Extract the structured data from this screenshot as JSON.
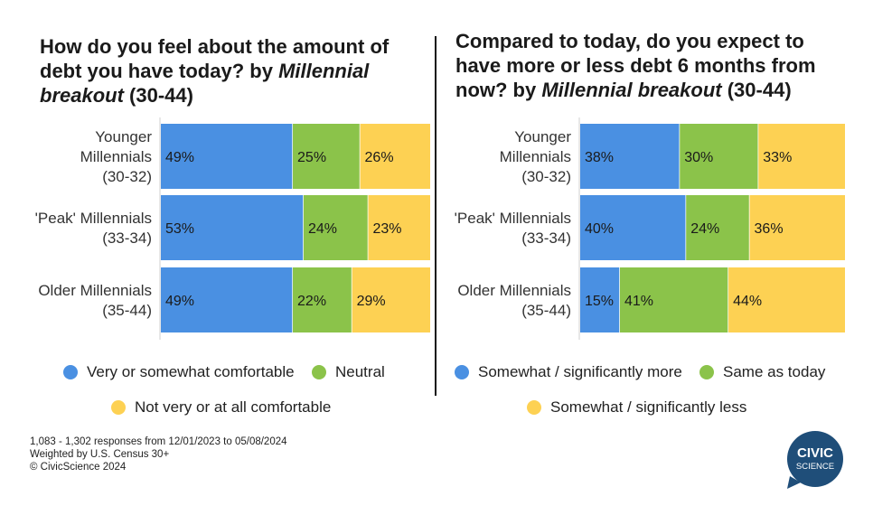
{
  "left_title": {
    "part1": "How do you feel about the amount of debt you have today?",
    "part2": " by ",
    "part3": "Millennial breakout",
    "part4": " (30-44)"
  },
  "right_title": {
    "part1": "Compared to today, do you expect to have more or less debt 6 months from now?",
    "part2": " by ",
    "part3": "Millennial breakout",
    "part4": " (30-44)"
  },
  "chart_data": [
    {
      "type": "bar",
      "stacked": true,
      "orientation": "horizontal",
      "categories": [
        [
          "Younger",
          "Millennials",
          "(30-32)"
        ],
        [
          "'Peak' Millennials",
          "(33-34)"
        ],
        [
          "Older Millennials",
          "(35-44)"
        ]
      ],
      "series": [
        {
          "name": "Very or somewhat comfortable",
          "color": "#4a90e2",
          "values": [
            49,
            53,
            49
          ]
        },
        {
          "name": "Neutral",
          "color": "#8bc34a",
          "values": [
            25,
            24,
            22
          ]
        },
        {
          "name": "Not very or at all comfortable",
          "color": "#fdd153",
          "values": [
            26,
            23,
            29
          ]
        }
      ],
      "value_suffix": "%"
    },
    {
      "type": "bar",
      "stacked": true,
      "orientation": "horizontal",
      "categories": [
        [
          "Younger",
          "Millennials",
          "(30-32)"
        ],
        [
          "'Peak' Millennials",
          "(33-34)"
        ],
        [
          "Older Millennials",
          "(35-44)"
        ]
      ],
      "series": [
        {
          "name": "Somewhat / significantly more",
          "color": "#4a90e2",
          "values": [
            38,
            40,
            15
          ]
        },
        {
          "name": "Same as today",
          "color": "#8bc34a",
          "values": [
            30,
            24,
            41
          ]
        },
        {
          "name": "Somewhat / significantly less",
          "color": "#fdd153",
          "values": [
            33,
            36,
            44
          ]
        }
      ],
      "value_suffix": "%"
    }
  ],
  "footnote": {
    "line1": "1,083 - 1,302 responses from 12/01/2023 to 05/08/2024",
    "line2": "Weighted by U.S. Census 30+",
    "line3": "© CivicScience 2024"
  },
  "logo": {
    "line1": "CIVIC",
    "line2": "SCIENCE",
    "color": "#1f4e79"
  }
}
